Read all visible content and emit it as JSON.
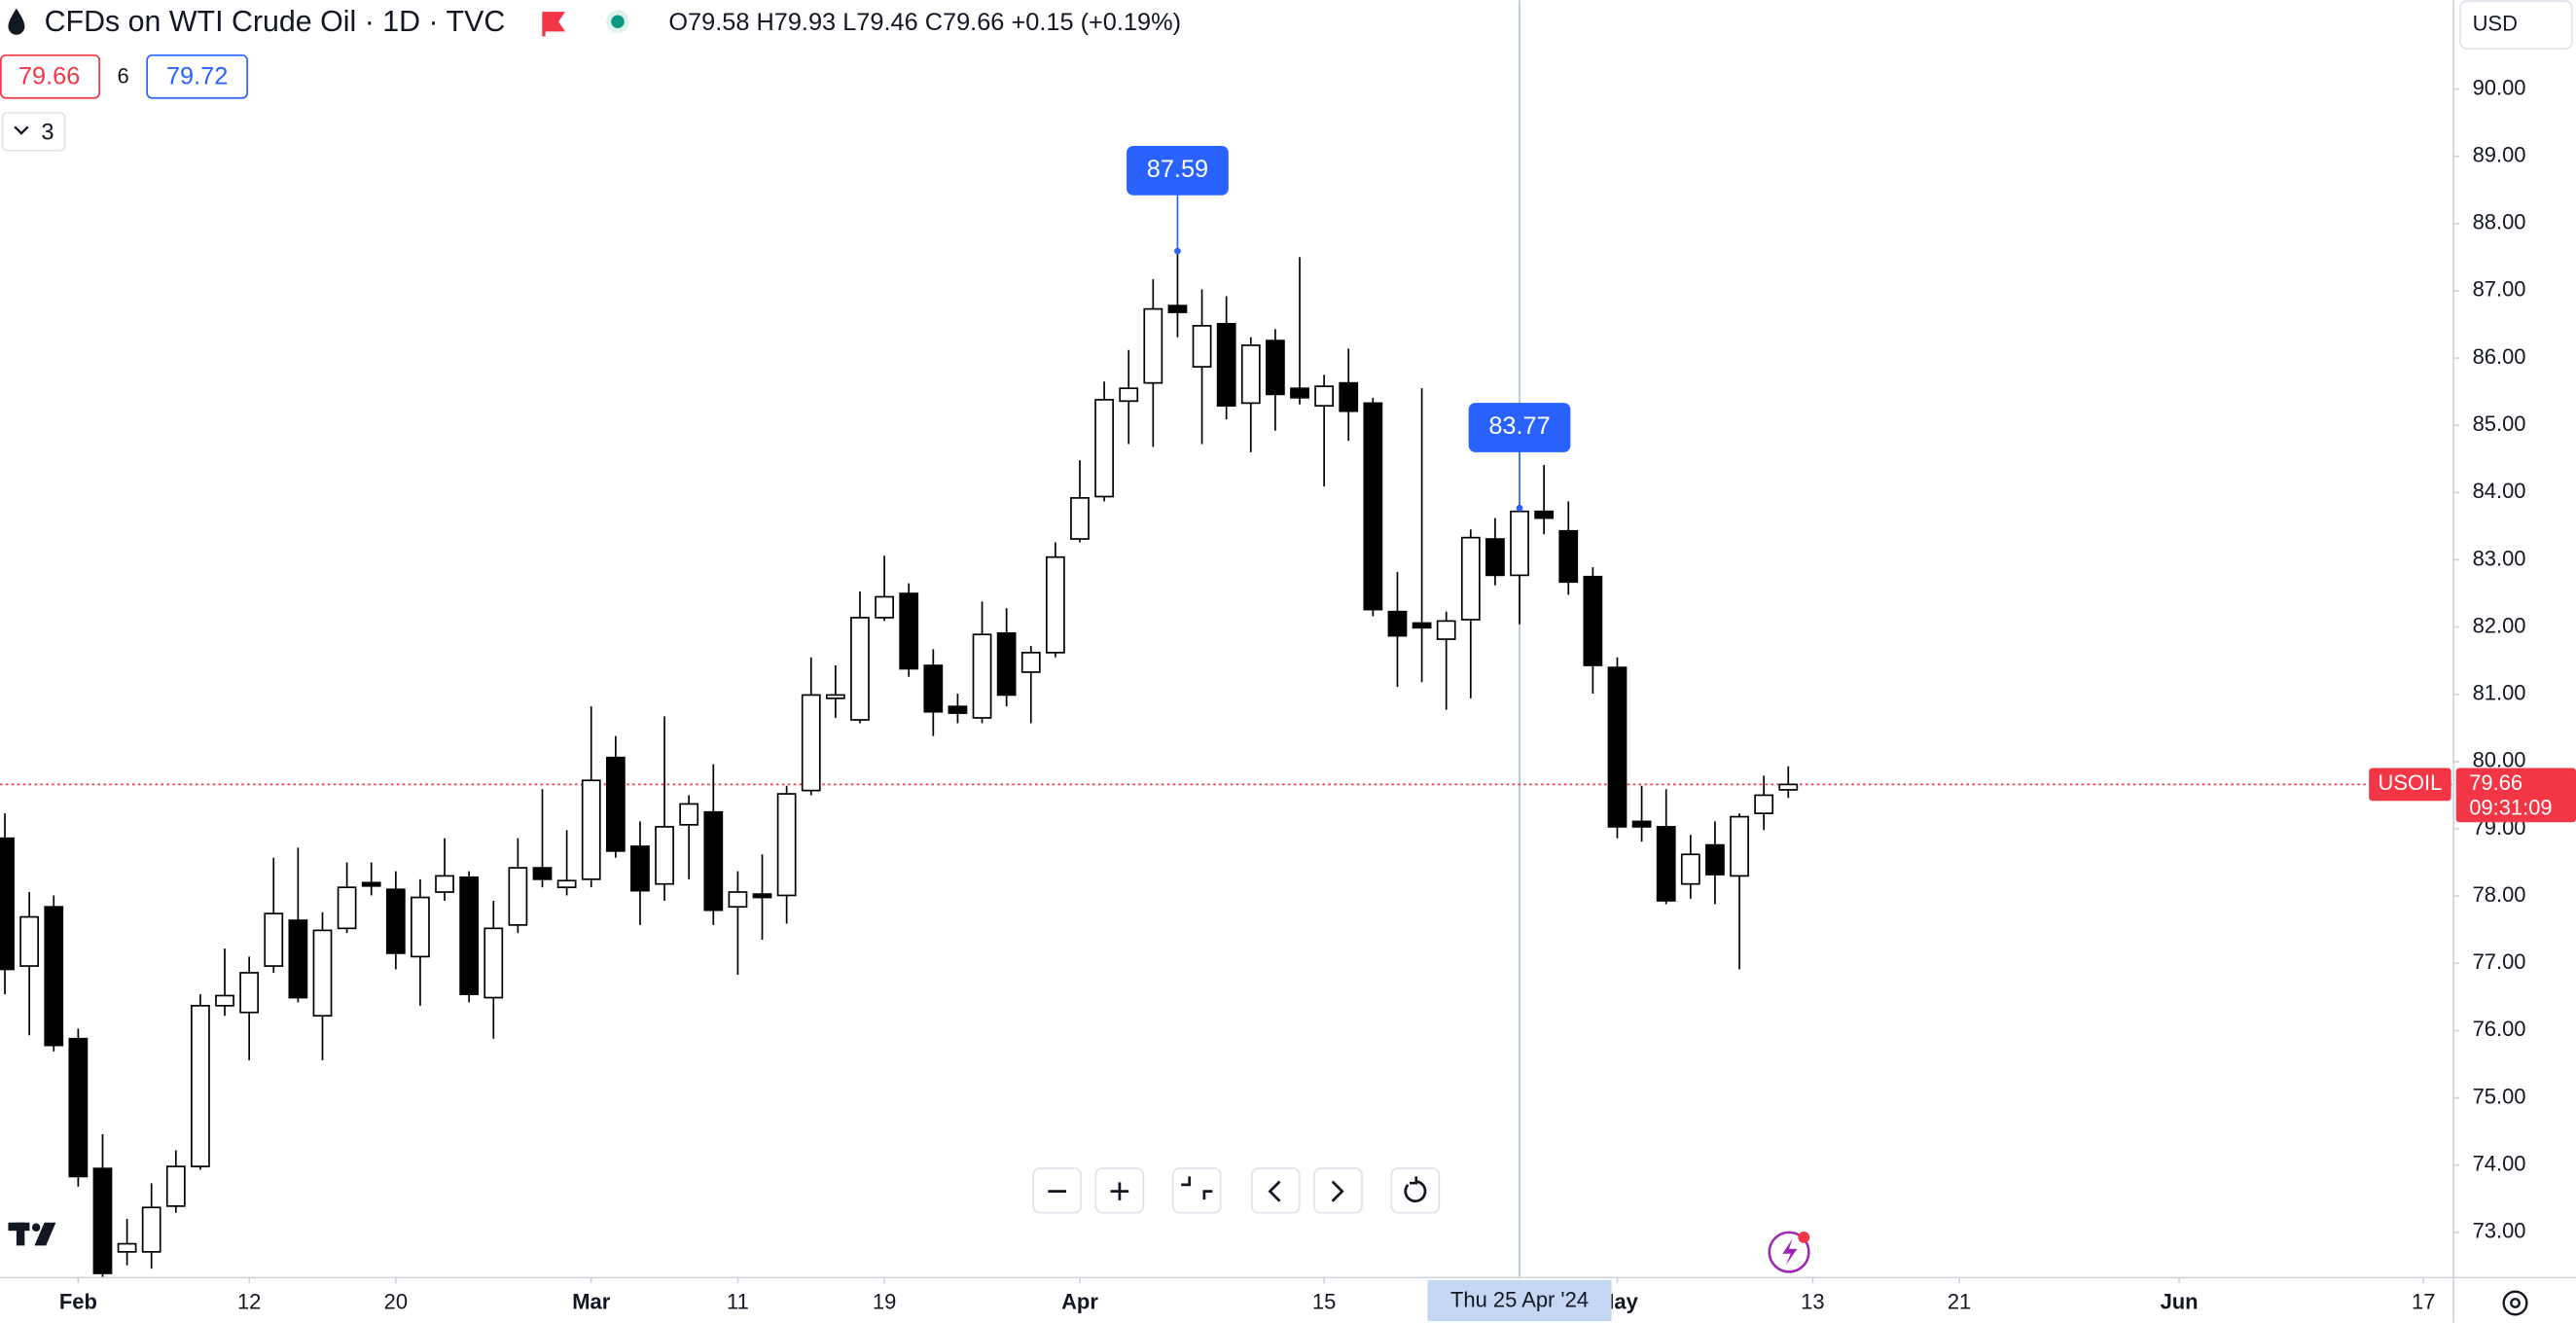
{
  "chart_data": {
    "type": "candlestick",
    "title": "CFDs on WTI Crude Oil · 1D · TVC",
    "legend_values": {
      "open": "O79.58",
      "high": "H79.93",
      "low": "L79.46",
      "close": "C79.66",
      "change": "+0.15 (+0.19%)"
    },
    "bid": 79.66,
    "spread": 6,
    "ask": 79.72,
    "indicators_count": 3,
    "currency": "USD",
    "open": [
      78.86,
      76.96,
      77.84,
      75.88,
      73.95,
      72.71,
      72.71,
      73.39,
      73.98,
      76.37,
      76.27,
      76.96,
      77.64,
      76.22,
      77.52,
      78.2,
      78.1,
      77.1,
      78.06,
      78.28,
      76.49,
      77.57,
      78.42,
      78.13,
      78.25,
      80.06,
      78.74,
      78.18,
      79.06,
      79.25,
      77.84,
      78.03,
      78.01,
      79.57,
      80.94,
      80.62,
      82.14,
      82.5,
      81.43,
      80.82,
      80.65,
      81.91,
      81.33,
      81.62,
      83.31,
      83.94,
      85.36,
      85.63,
      86.78,
      85.87,
      86.51,
      85.33,
      86.26,
      85.55,
      85.29,
      85.63,
      85.33,
      82.23,
      82.06,
      81.82,
      82.11,
      83.31,
      82.77,
      83.72,
      83.43,
      82.75,
      81.4,
      79.11,
      79.03,
      78.18,
      78.76,
      78.3,
      79.23,
      79.58
    ],
    "high": [
      79.23,
      78.06,
      78.01,
      76.03,
      74.46,
      73.2,
      73.73,
      74.22,
      76.54,
      77.22,
      77.1,
      78.57,
      78.72,
      77.76,
      78.5,
      78.5,
      78.37,
      78.25,
      78.86,
      78.37,
      77.93,
      78.86,
      79.59,
      78.98,
      80.82,
      80.38,
      79.11,
      80.67,
      79.5,
      79.96,
      78.37,
      78.62,
      79.64,
      81.55,
      81.43,
      82.53,
      83.06,
      82.65,
      81.67,
      81.01,
      82.38,
      82.28,
      81.72,
      83.26,
      84.48,
      85.65,
      86.12,
      87.17,
      87.59,
      87.02,
      86.92,
      86.31,
      86.43,
      87.5,
      85.75,
      86.14,
      85.41,
      82.82,
      85.55,
      82.23,
      83.45,
      83.62,
      83.77,
      84.41,
      83.87,
      82.89,
      81.55,
      79.64,
      79.59,
      78.91,
      79.11,
      79.23,
      79.79,
      79.93
    ],
    "low": [
      76.54,
      75.93,
      75.69,
      73.68,
      72.27,
      72.51,
      72.46,
      73.29,
      73.93,
      76.22,
      75.56,
      76.86,
      76.42,
      75.56,
      77.45,
      78.01,
      76.91,
      76.37,
      77.93,
      76.42,
      75.88,
      77.45,
      78.13,
      78.01,
      78.13,
      78.57,
      77.57,
      77.93,
      78.25,
      77.57,
      76.83,
      77.35,
      77.59,
      79.5,
      80.65,
      80.57,
      82.09,
      81.26,
      80.38,
      80.57,
      80.57,
      80.82,
      80.57,
      81.55,
      83.26,
      83.87,
      84.72,
      84.68,
      86.31,
      84.72,
      85.09,
      84.6,
      84.92,
      85.31,
      84.09,
      84.77,
      82.16,
      81.11,
      81.18,
      80.77,
      80.94,
      82.62,
      82.04,
      83.38,
      82.48,
      81.01,
      78.86,
      78.81,
      77.88,
      77.96,
      77.88,
      76.91,
      78.98,
      79.46
    ],
    "close": [
      76.91,
      77.69,
      75.78,
      73.83,
      72.39,
      72.83,
      73.37,
      73.98,
      76.37,
      76.52,
      76.86,
      77.74,
      76.49,
      77.49,
      78.13,
      78.15,
      77.15,
      77.98,
      78.3,
      76.54,
      77.52,
      78.42,
      78.25,
      78.23,
      79.72,
      78.67,
      78.08,
      79.03,
      79.37,
      77.79,
      78.06,
      77.98,
      79.52,
      80.99,
      80.99,
      82.14,
      82.45,
      81.38,
      80.74,
      80.72,
      81.89,
      80.99,
      81.62,
      83.04,
      83.92,
      85.38,
      85.55,
      86.73,
      86.68,
      86.48,
      85.29,
      86.19,
      85.46,
      85.41,
      85.58,
      85.21,
      82.26,
      81.87,
      81.99,
      82.09,
      83.33,
      82.77,
      83.72,
      83.62,
      82.67,
      81.43,
      79.03,
      79.03,
      77.93,
      78.62,
      78.32,
      79.18,
      79.5,
      79.66
    ],
    "up_color": "#ffffff",
    "down_color": "#000000",
    "border_color": "#000000",
    "xlim": [
      -0.2,
      100.2
    ],
    "xticks": [
      {
        "value": 3,
        "label": "Feb"
      },
      {
        "value": 10,
        "label": "12"
      },
      {
        "value": 16,
        "label": "20"
      },
      {
        "value": 24,
        "label": "Mar"
      },
      {
        "value": 30,
        "label": "11"
      },
      {
        "value": 36,
        "label": "19"
      },
      {
        "value": 44,
        "label": "Apr"
      },
      {
        "value": 54,
        "label": "15"
      },
      {
        "value": 66,
        "label": "May"
      },
      {
        "value": 74,
        "label": "13"
      },
      {
        "value": 80,
        "label": "21"
      },
      {
        "value": 89,
        "label": "Jun"
      },
      {
        "value": 99,
        "label": "17"
      }
    ],
    "ylim": [
      72.34,
      91.32
    ],
    "yticks": [
      {
        "value": 73,
        "label": "73.00"
      },
      {
        "value": 74,
        "label": "74.00"
      },
      {
        "value": 75,
        "label": "75.00"
      },
      {
        "value": 76,
        "label": "76.00"
      },
      {
        "value": 77,
        "label": "77.00"
      },
      {
        "value": 78,
        "label": "78.00"
      },
      {
        "value": 79,
        "label": "79.00"
      },
      {
        "value": 80,
        "label": "80.00"
      },
      {
        "value": 81,
        "label": "81.00"
      },
      {
        "value": 82,
        "label": "82.00"
      },
      {
        "value": 83,
        "label": "83.00"
      },
      {
        "value": 84,
        "label": "84.00"
      },
      {
        "value": 85,
        "label": "85.00"
      },
      {
        "value": 86,
        "label": "86.00"
      },
      {
        "value": 87,
        "label": "87.00"
      },
      {
        "value": 88,
        "label": "88.00"
      },
      {
        "value": 89,
        "label": "89.00"
      },
      {
        "value": 90,
        "label": "90.00"
      }
    ],
    "grid": false,
    "callouts": [
      48,
      62
    ],
    "price_line": {
      "symbol": "USOIL",
      "value": 79.66,
      "countdown": "09:31:09",
      "color": "#f23645"
    },
    "crosshair": {
      "x": 62,
      "label": "Thu 25 Apr '24"
    }
  }
}
